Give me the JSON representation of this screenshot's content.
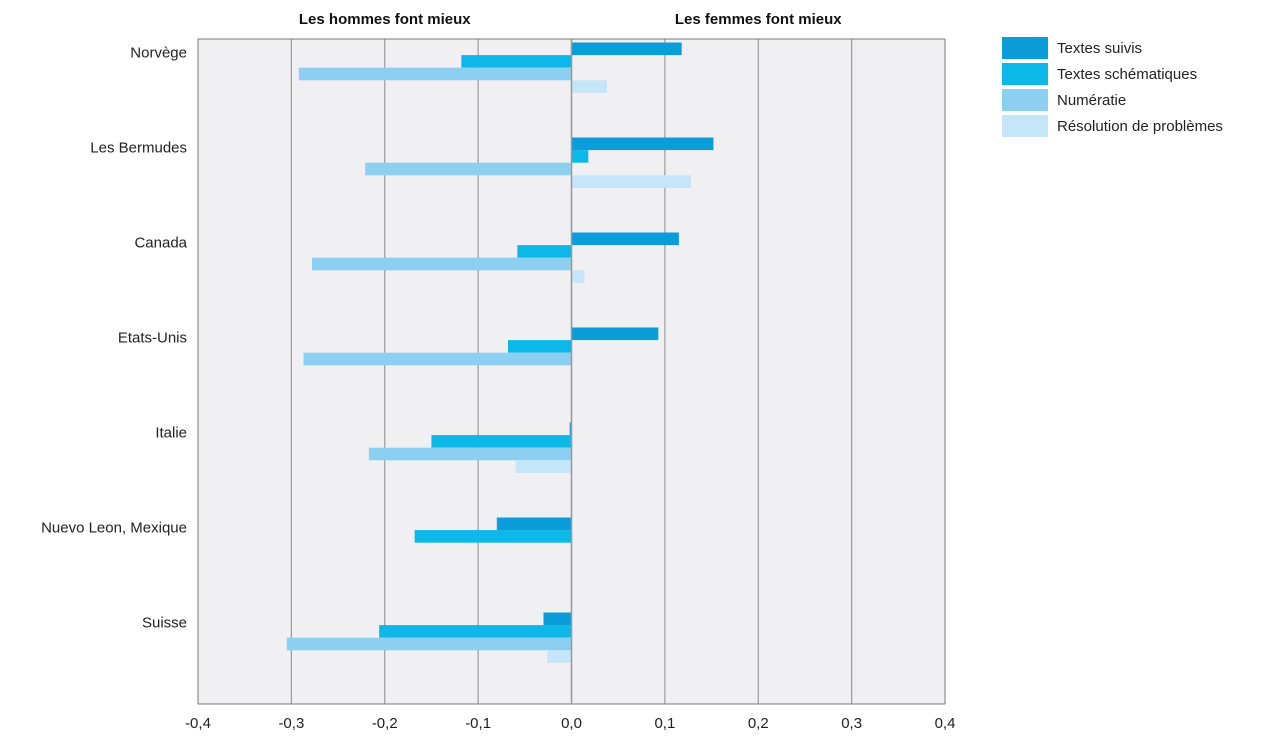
{
  "chart_data": {
    "type": "bar",
    "orientation": "horizontal",
    "title": "",
    "xlabel": "",
    "ylabel": "",
    "header_left": "Les hommes font mieux",
    "header_right": "Les femmes font mieux",
    "categories": [
      "Norvège",
      "Les Bermudes",
      "Canada",
      "Etats-Unis",
      "Italie",
      "Nuevo Leon, Mexique",
      "Suisse"
    ],
    "series": [
      {
        "name": "Textes suivis",
        "color": "#0a9dd9",
        "values": [
          0.118,
          0.152,
          0.115,
          0.093,
          -0.002,
          -0.08,
          -0.03
        ]
      },
      {
        "name": "Textes schématiques",
        "color": "#0bb8e8",
        "values": [
          -0.118,
          0.018,
          -0.058,
          -0.068,
          -0.15,
          -0.168,
          -0.206
        ]
      },
      {
        "name": "Numératie",
        "color": "#8dcff0",
        "values": [
          -0.292,
          -0.221,
          -0.278,
          -0.287,
          -0.217,
          null,
          -0.305
        ]
      },
      {
        "name": "Résolution de problèmes",
        "color": "#c4e6f8",
        "values": [
          0.038,
          0.128,
          0.014,
          null,
          -0.06,
          null,
          -0.026
        ]
      }
    ],
    "xlim": [
      -0.4,
      0.4
    ],
    "xticks": [
      "-0,4",
      "-0,3",
      "-0,2",
      "-0,1",
      "0,0",
      "0,1",
      "0,2",
      "0,3",
      "0,4"
    ],
    "grid": true,
    "legend_position": "top-right",
    "colors": {
      "plot_background": "#f0f0f3",
      "grid": "#9a9a9a",
      "axis": "#777777"
    }
  }
}
